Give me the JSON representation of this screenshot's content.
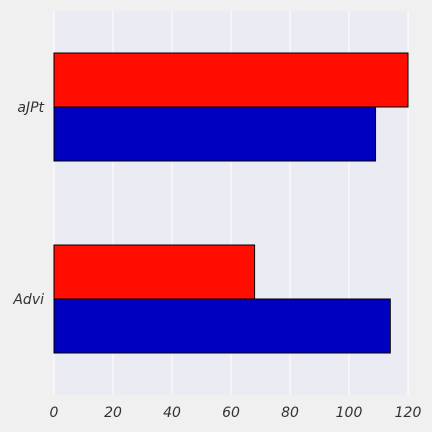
{
  "chart_data": {
    "type": "bar",
    "orientation": "horizontal",
    "categories": [
      "aJPt",
      "Advi"
    ],
    "series": [
      {
        "values": [
          120,
          68
        ],
        "color": "#ff0e00"
      },
      {
        "values": [
          109,
          114
        ],
        "color": "#0000c0"
      }
    ],
    "xlim": [
      0,
      120
    ],
    "x_ticks": [
      0,
      20,
      40,
      60,
      80,
      100,
      120
    ],
    "grid": true,
    "legend": "none",
    "plot_background": "#ebebf3",
    "page_background": "#f0f0f0",
    "title": "",
    "xlabel": "",
    "ylabel": ""
  }
}
